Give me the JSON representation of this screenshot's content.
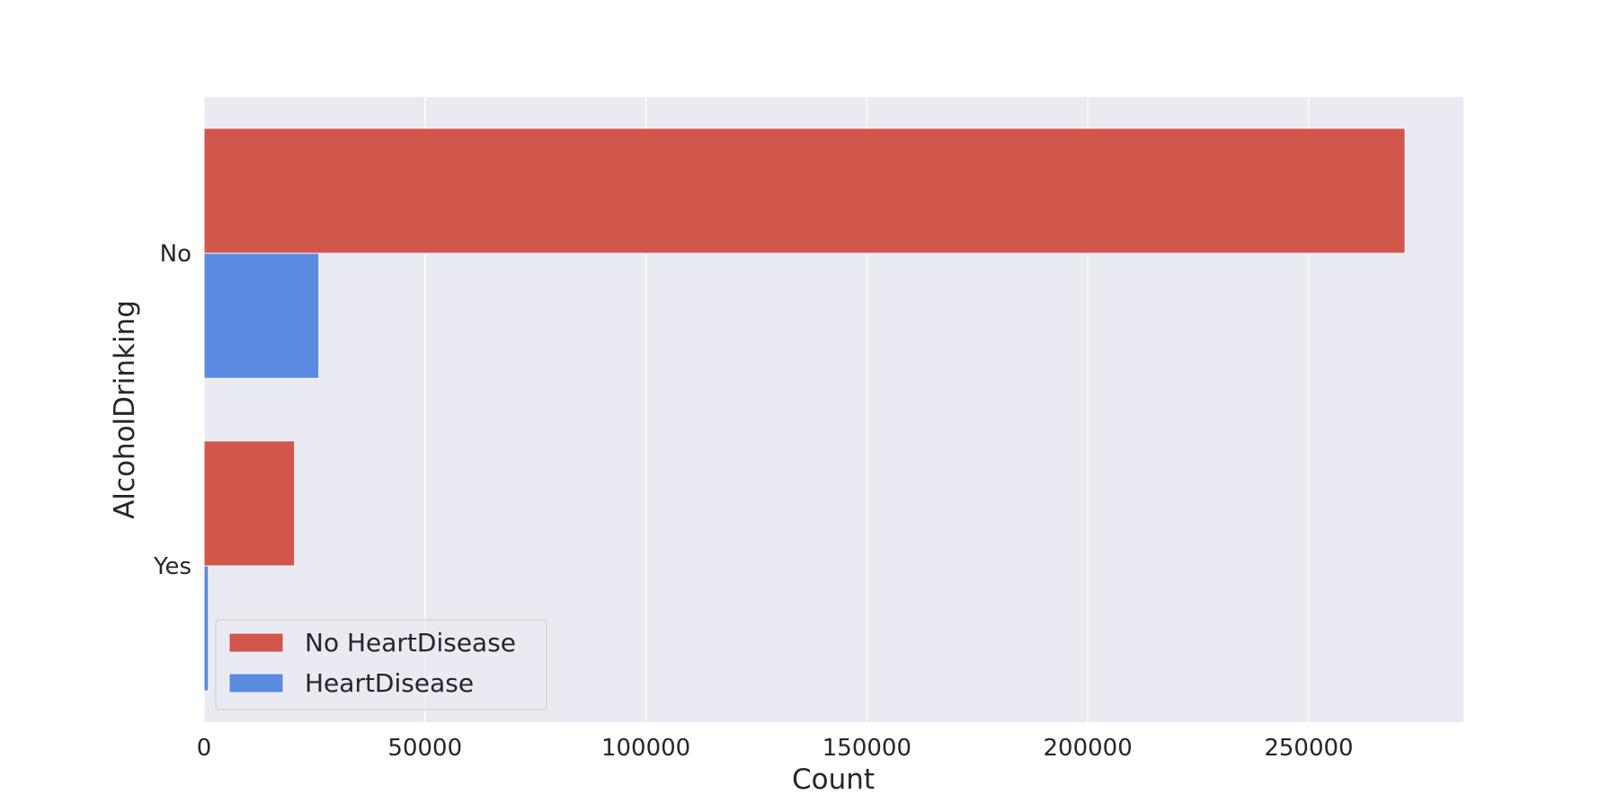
{
  "chart_data": {
    "type": "bar",
    "orientation": "horizontal",
    "categories": [
      "No",
      "Yes"
    ],
    "series": [
      {
        "name": "No HeartDisease",
        "color": "#d1574d",
        "values": [
          271800,
          20500
        ]
      },
      {
        "name": "HeartDisease",
        "color": "#5b8be0",
        "values": [
          26000,
          1000
        ]
      }
    ],
    "xlabel": "Count",
    "ylabel": "AlcoholDrinking",
    "xlim": [
      0,
      285000
    ],
    "xticks": [
      0,
      50000,
      100000,
      150000,
      200000,
      250000
    ],
    "xtick_labels": [
      "0",
      "50000",
      "100000",
      "150000",
      "200000",
      "250000"
    ],
    "grid": true,
    "background": "#eaeaf2",
    "legend_position": "lower-left"
  }
}
